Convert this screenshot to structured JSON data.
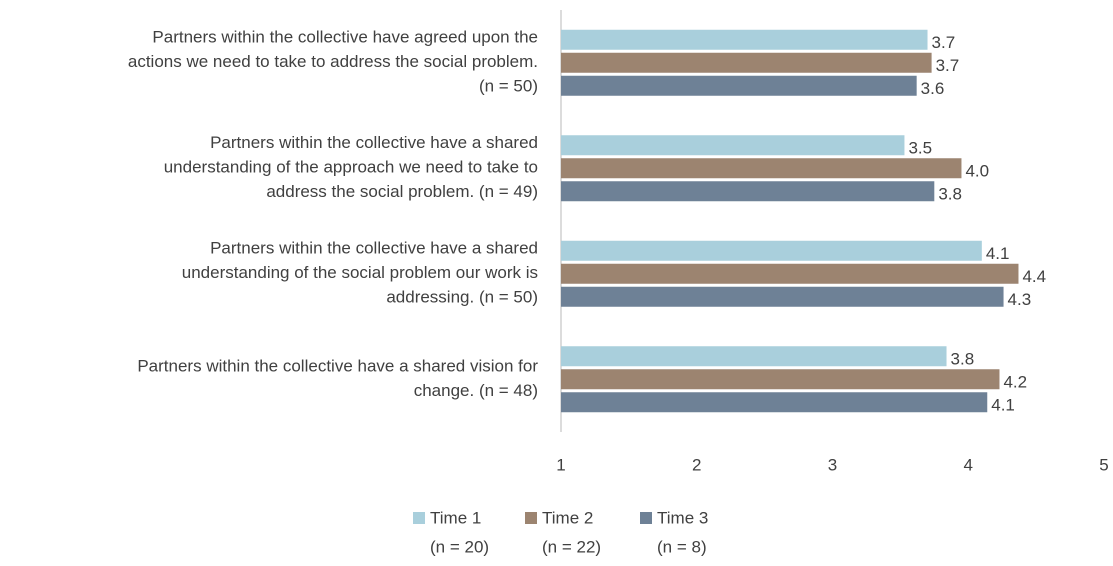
{
  "chart_data": {
    "type": "barh",
    "categories": [
      [
        "Partners within the collective have agreed upon the",
        "actions we need to take to address the social problem.",
        "(n = 50)"
      ],
      [
        "Partners within the collective have a shared",
        "understanding of the approach we need to take to",
        "address the social problem. (n = 49)"
      ],
      [
        "Partners within the collective have a shared",
        "understanding of the social problem our work is",
        "addressing. (n = 50)"
      ],
      [
        "Partners within the collective have a shared vision for",
        "change. (n = 48)"
      ]
    ],
    "series": [
      {
        "name": [
          "Time 1",
          "(n = 20)"
        ],
        "color": "#a9cfdc",
        "values": [
          3.7,
          3.53,
          4.1,
          3.84
        ],
        "value_labels": [
          "3.7",
          "3.5",
          "4.1",
          "3.8"
        ]
      },
      {
        "name": [
          "Time 2",
          "(n = 22)"
        ],
        "color": "#9c8470",
        "values": [
          3.73,
          3.95,
          4.37,
          4.23
        ],
        "value_labels": [
          "3.7",
          "4.0",
          "4.4",
          "4.2"
        ]
      },
      {
        "name": [
          "Time 3",
          "(n = 8)"
        ],
        "color": "#6e8196",
        "values": [
          3.62,
          3.75,
          4.26,
          4.14
        ],
        "value_labels": [
          "3.6",
          "3.8",
          "4.3",
          "4.1"
        ]
      }
    ],
    "xlim": [
      1,
      5
    ],
    "xticks": [
      1,
      2,
      3,
      4,
      5
    ],
    "grid": false
  }
}
